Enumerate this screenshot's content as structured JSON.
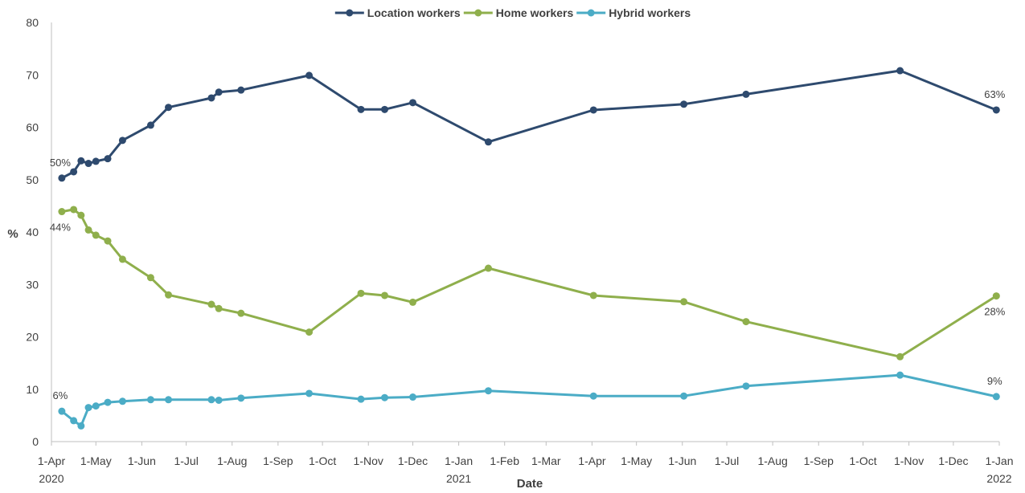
{
  "chart_data": {
    "type": "line",
    "xlabel": "Date",
    "ylabel": "%",
    "ylim": [
      0,
      80
    ],
    "y_ticks": [
      0,
      10,
      20,
      30,
      40,
      50,
      60,
      70,
      80
    ],
    "x_range": [
      "2020-04-01",
      "2022-01-01"
    ],
    "x_ticks": [
      {
        "date": "2020-04-01",
        "label": "1-Apr",
        "year": "2020"
      },
      {
        "date": "2020-05-01",
        "label": "1-May"
      },
      {
        "date": "2020-06-01",
        "label": "1-Jun"
      },
      {
        "date": "2020-07-01",
        "label": "1-Jul"
      },
      {
        "date": "2020-08-01",
        "label": "1-Aug"
      },
      {
        "date": "2020-09-01",
        "label": "1-Sep"
      },
      {
        "date": "2020-10-01",
        "label": "1-Oct"
      },
      {
        "date": "2020-11-01",
        "label": "1-Nov"
      },
      {
        "date": "2020-12-01",
        "label": "1-Dec"
      },
      {
        "date": "2021-01-01",
        "label": "1-Jan",
        "year": "2021"
      },
      {
        "date": "2021-02-01",
        "label": "1-Feb"
      },
      {
        "date": "2021-03-01",
        "label": "1-Mar"
      },
      {
        "date": "2021-04-01",
        "label": "1-Apr"
      },
      {
        "date": "2021-05-01",
        "label": "1-May"
      },
      {
        "date": "2021-06-01",
        "label": "1-Jun"
      },
      {
        "date": "2021-07-01",
        "label": "1-Jul"
      },
      {
        "date": "2021-08-01",
        "label": "1-Aug"
      },
      {
        "date": "2021-09-01",
        "label": "1-Sep"
      },
      {
        "date": "2021-10-01",
        "label": "1-Oct"
      },
      {
        "date": "2021-11-01",
        "label": "1-Nov"
      },
      {
        "date": "2021-12-01",
        "label": "1-Dec"
      },
      {
        "date": "2022-01-01",
        "label": "1-Jan",
        "year": "2022"
      }
    ],
    "x": [
      "2020-04-08",
      "2020-04-16",
      "2020-04-21",
      "2020-04-26",
      "2020-05-01",
      "2020-05-09",
      "2020-05-19",
      "2020-06-07",
      "2020-06-19",
      "2020-07-18",
      "2020-07-23",
      "2020-08-07",
      "2020-09-22",
      "2020-10-27",
      "2020-11-12",
      "2020-12-01",
      "2021-01-21",
      "2021-04-02",
      "2021-06-02",
      "2021-07-14",
      "2021-10-26",
      "2021-12-30"
    ],
    "legend_position": "top-center",
    "grid": false,
    "series": [
      {
        "name": "Location workers",
        "color": "#2e4a6e",
        "values": [
          50.3,
          51.5,
          53.6,
          53.1,
          53.5,
          54.0,
          57.5,
          60.4,
          63.8,
          65.6,
          66.7,
          67.1,
          69.9,
          63.4,
          63.4,
          64.7,
          57.2,
          63.3,
          64.4,
          66.3,
          70.8,
          63.3
        ],
        "labels": [
          {
            "index": 0,
            "text": "50%",
            "pos": "above"
          },
          {
            "index": 21,
            "text": "63%",
            "pos": "above"
          }
        ]
      },
      {
        "name": "Home workers",
        "color": "#8faf4c",
        "values": [
          43.9,
          44.3,
          43.2,
          40.4,
          39.4,
          38.3,
          34.8,
          31.3,
          28.0,
          26.2,
          25.4,
          24.5,
          20.9,
          28.3,
          27.9,
          26.6,
          33.1,
          27.9,
          26.7,
          22.9,
          16.2,
          27.8
        ],
        "labels": [
          {
            "index": 0,
            "text": "44%",
            "pos": "below"
          },
          {
            "index": 21,
            "text": "28%",
            "pos": "below"
          }
        ]
      },
      {
        "name": "Hybrid workers",
        "color": "#4bacc6",
        "values": [
          5.8,
          4.0,
          3.0,
          6.5,
          6.8,
          7.5,
          7.7,
          8.0,
          8.0,
          8.0,
          7.9,
          8.3,
          9.2,
          8.1,
          8.4,
          8.5,
          9.7,
          8.7,
          8.7,
          10.6,
          12.7,
          8.6
        ],
        "labels": [
          {
            "index": 0,
            "text": "6%",
            "pos": "above"
          },
          {
            "index": 21,
            "text": "9%",
            "pos": "above"
          }
        ]
      }
    ]
  }
}
